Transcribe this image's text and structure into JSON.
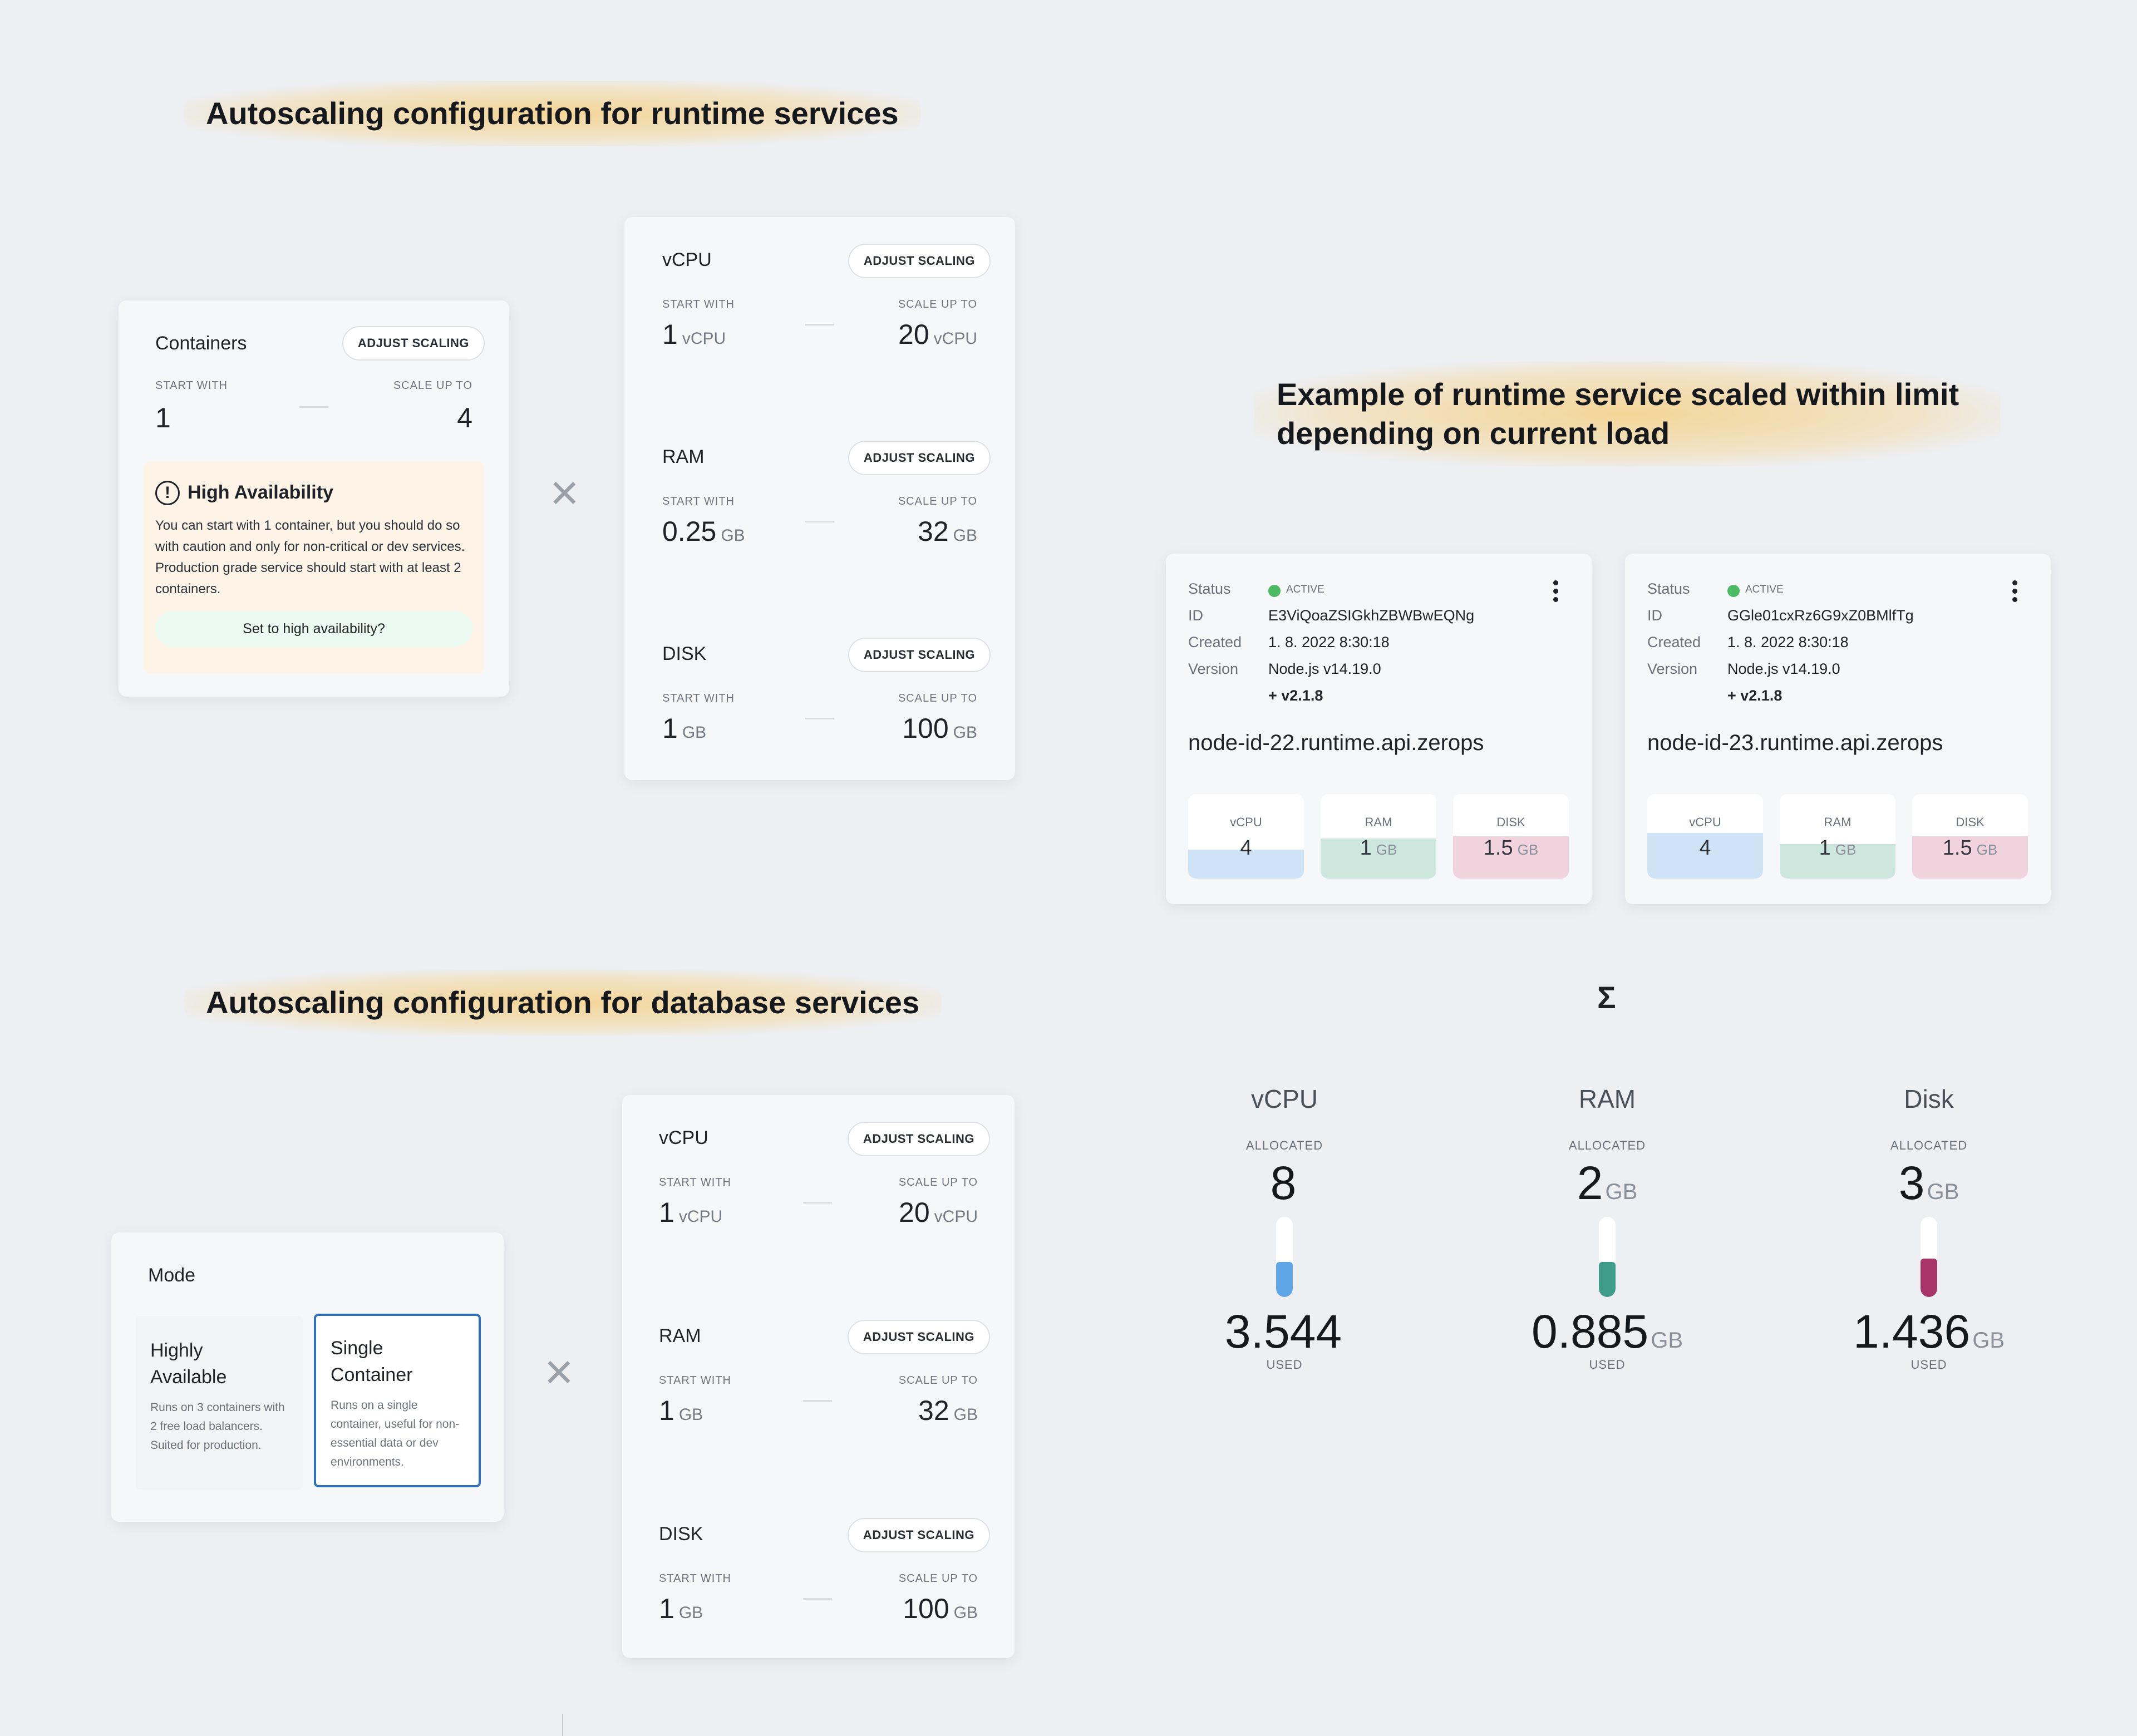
{
  "headings": {
    "runtime": "Autoscaling configuration for runtime services",
    "example": "Example of runtime service scaled within limit depending on current load",
    "database": "Autoscaling configuration for database services"
  },
  "common": {
    "adjust_scaling": "ADJUST SCALING",
    "start_with": "START WITH",
    "scale_up_to": "SCALE UP TO",
    "times_symbol": "×"
  },
  "containers_card": {
    "title": "Containers",
    "start": "1",
    "max": "4",
    "ha_title": "High Availability",
    "ha_text": "You can start with 1 container, but you should do so with caution and only for non-critical or dev services. Production grade service should start with at least 2 containers.",
    "ha_button": "Set to high availability?"
  },
  "runtime_resources": [
    {
      "name": "vCPU",
      "start": "1",
      "start_unit": "vCPU",
      "max": "20",
      "max_unit": "vCPU"
    },
    {
      "name": "RAM",
      "start": "0.25",
      "start_unit": "GB",
      "max": "32",
      "max_unit": "GB"
    },
    {
      "name": "DISK",
      "start": "1",
      "start_unit": "GB",
      "max": "100",
      "max_unit": "GB"
    }
  ],
  "database_resources": [
    {
      "name": "vCPU",
      "start": "1",
      "start_unit": "vCPU",
      "max": "20",
      "max_unit": "vCPU"
    },
    {
      "name": "RAM",
      "start": "1",
      "start_unit": "GB",
      "max": "32",
      "max_unit": "GB"
    },
    {
      "name": "DISK",
      "start": "1",
      "start_unit": "GB",
      "max": "100",
      "max_unit": "GB"
    }
  ],
  "mode_card": {
    "title": "Mode",
    "options": [
      {
        "title_line1": "Highly",
        "title_line2": "Available",
        "desc": "Runs on 3 containers with 2 free load balancers. Suited for production."
      },
      {
        "title_line1": "Single",
        "title_line2": "Container",
        "desc": "Runs on a single container, useful for non-essential data or dev environments."
      }
    ]
  },
  "instances": [
    {
      "status_key": "Status",
      "status": "ACTIVE",
      "id_key": "ID",
      "id": "E3ViQoaZSIGkhZBWBwEQNg",
      "created_key": "Created",
      "created": "1. 8. 2022 8:30:18",
      "version_key": "Version",
      "version": "Node.js v14.19.0",
      "version_extra": "+ v2.1.8",
      "hostname": "node-id-22.runtime.api.zerops",
      "vcpu_label": "vCPU",
      "vcpu": "4",
      "ram_label": "RAM",
      "ram": "1",
      "ram_unit": "GB",
      "disk_label": "DISK",
      "disk": "1.5",
      "disk_unit": "GB"
    },
    {
      "status_key": "Status",
      "status": "ACTIVE",
      "id_key": "ID",
      "id": "GGle01cxRz6G9xZ0BMlfTg",
      "created_key": "Created",
      "created": "1. 8. 2022 8:30:18",
      "version_key": "Version",
      "version": "Node.js v14.19.0",
      "version_extra": "+ v2.1.8",
      "hostname": "node-id-23.runtime.api.zerops",
      "vcpu_label": "vCPU",
      "vcpu": "4",
      "ram_label": "RAM",
      "ram": "1",
      "ram_unit": "GB",
      "disk_label": "DISK",
      "disk": "1.5",
      "disk_unit": "GB"
    }
  ],
  "summary": {
    "sigma": "Σ",
    "allocated_label": "ALLOCATED",
    "used_label": "USED",
    "columns": [
      {
        "title": "vCPU",
        "allocated": "8",
        "allocated_unit": "",
        "used": "3.544",
        "used_unit": "",
        "fill_fraction": 0.44
      },
      {
        "title": "RAM",
        "allocated": "2",
        "allocated_unit": "GB",
        "used": "0.885",
        "used_unit": "GB",
        "fill_fraction": 0.44
      },
      {
        "title": "Disk",
        "allocated": "3",
        "allocated_unit": "GB",
        "used": "1.436",
        "used_unit": "GB",
        "fill_fraction": 0.48
      }
    ]
  },
  "colors": {
    "vcpu_fill": "#cfe3f6",
    "ram_fill": "#cde6de",
    "disk_fill": "#f1d3de",
    "vcpu_gauge": "#5ea6e6",
    "ram_gauge": "#3d9c8a",
    "disk_gauge": "#a8356a",
    "active": "#4cb963",
    "selected_border": "#2e6fbe"
  }
}
